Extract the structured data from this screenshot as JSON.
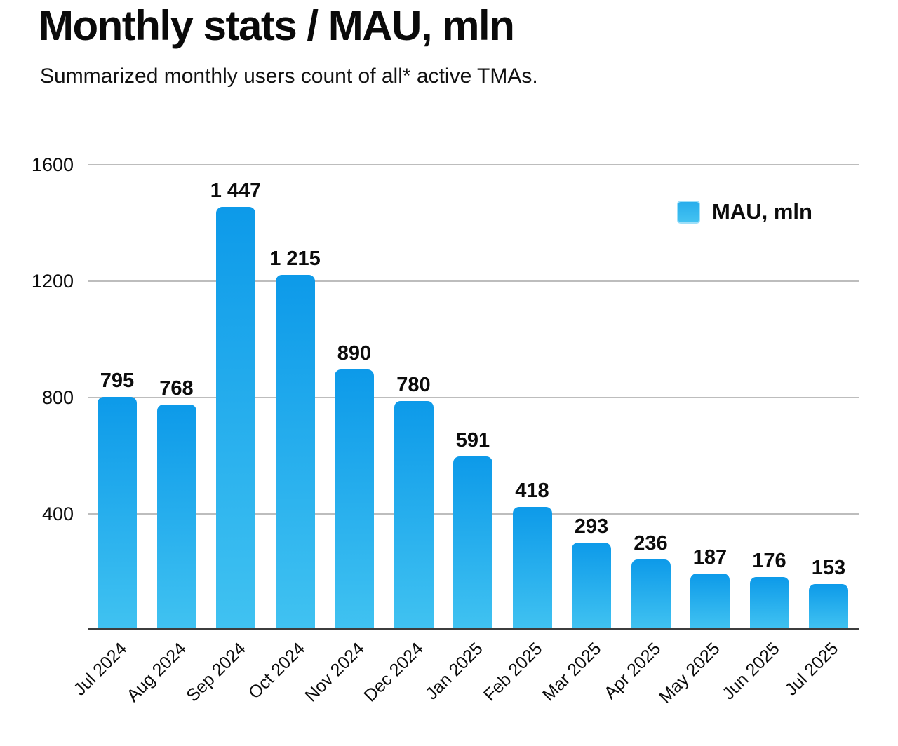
{
  "header": {
    "title": "Monthly stats / MAU, mln",
    "subtitle": "Summarized monthly users count of all* active TMAs."
  },
  "legend": {
    "label": "MAU, mln",
    "position": "top-right"
  },
  "colors": {
    "bar_gradient_top": "#0d9ae9",
    "bar_gradient_bottom": "#40c2f1",
    "legend_swatch_border": "#9edff9",
    "gridline": "#bdbdbd",
    "axis_line": "#3d3d3d",
    "text": "#0c0c0c",
    "background": "#ffffff"
  },
  "chart_data": {
    "type": "bar",
    "title": "Monthly stats / MAU, mln",
    "subtitle": "Summarized monthly users count of all* active TMAs.",
    "categories": [
      "Jul 2024",
      "Aug 2024",
      "Sep 2024",
      "Oct 2024",
      "Nov 2024",
      "Dec 2024",
      "Jan 2025",
      "Feb 2025",
      "Mar 2025",
      "Apr 2025",
      "May 2025",
      "Jun 2025",
      "Jul 2025"
    ],
    "values": [
      795,
      768,
      1447,
      1215,
      890,
      780,
      591,
      418,
      293,
      236,
      187,
      176,
      153
    ],
    "value_labels": [
      "795",
      "768",
      "1 447",
      "1 215",
      "890",
      "780",
      "591",
      "418",
      "293",
      "236",
      "187",
      "176",
      "153"
    ],
    "series_name": "MAU, mln",
    "xlabel": "",
    "ylabel": "",
    "ylim": [
      0,
      1600
    ],
    "yticks": [
      400,
      800,
      1200,
      1600
    ],
    "grid": true,
    "legend_position": "top-right",
    "x_tick_rotation_deg": -45
  }
}
